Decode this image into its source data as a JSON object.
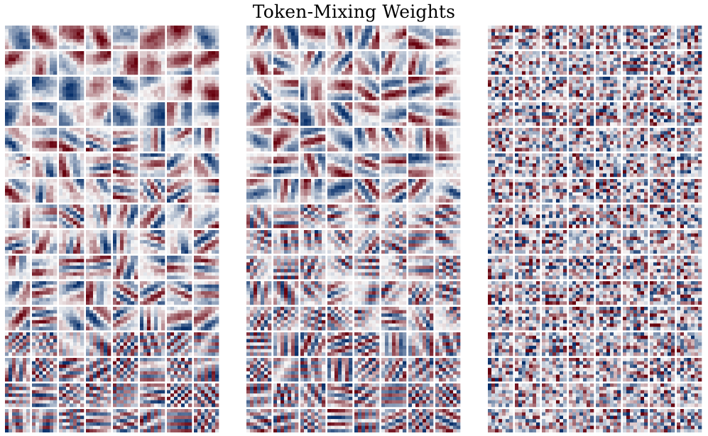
{
  "title": "Token-Mixing Weights",
  "colormap": {
    "negative": "#08306b",
    "neutral": "#f7f7f7",
    "positive": "#67000d"
  },
  "panels": [
    {
      "name": "panel-1",
      "grid": {
        "rows": 16,
        "cols": 8
      },
      "pattern": "smooth-to-oscillating"
    },
    {
      "name": "panel-2",
      "grid": {
        "rows": 16,
        "cols": 8
      },
      "pattern": "gratings"
    },
    {
      "name": "panel-3",
      "grid": {
        "rows": 16,
        "cols": 8
      },
      "pattern": "noisy"
    }
  ]
}
